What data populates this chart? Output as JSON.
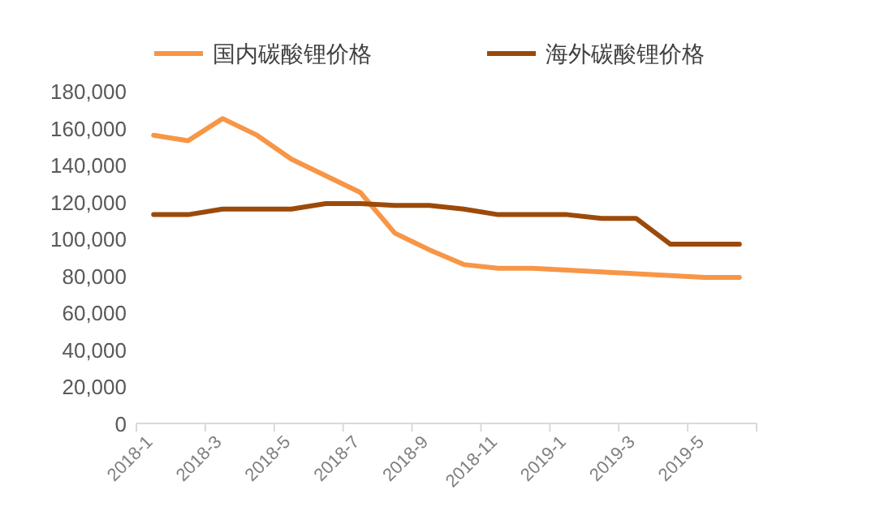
{
  "chart_data": {
    "type": "line",
    "categories": [
      "2018-1",
      null,
      "2018-3",
      null,
      "2018-5",
      null,
      "2018-7",
      null,
      "2018-9",
      null,
      "2018-11",
      null,
      "2019-1",
      null,
      "2019-3",
      null,
      "2019-5",
      null
    ],
    "series": [
      {
        "name": "国内碳酸锂价格",
        "color": "#f79646",
        "values": [
          156000,
          153000,
          165000,
          156000,
          143000,
          134000,
          125000,
          103000,
          94000,
          86000,
          84000,
          84000,
          83000,
          82000,
          81000,
          80000,
          79000,
          79000
        ]
      },
      {
        "name": "海外碳酸锂价格",
        "color": "#9c4a0a",
        "values": [
          113000,
          113000,
          116000,
          116000,
          116000,
          119000,
          119000,
          118000,
          118000,
          116000,
          113000,
          113000,
          113000,
          111000,
          111000,
          97000,
          97000,
          97000
        ]
      }
    ],
    "ylim": [
      0,
      180000
    ],
    "yticks": [
      {
        "value": 0,
        "label": "0"
      },
      {
        "value": 20000,
        "label": "20,000"
      },
      {
        "value": 40000,
        "label": "40,000"
      },
      {
        "value": 60000,
        "label": "60,000"
      },
      {
        "value": 80000,
        "label": "80,000"
      },
      {
        "value": 100000,
        "label": "100,000"
      },
      {
        "value": 120000,
        "label": "120,000"
      },
      {
        "value": 140000,
        "label": "140,000"
      },
      {
        "value": 160000,
        "label": "160,000"
      },
      {
        "value": 180000,
        "label": "180,000"
      }
    ],
    "legend": "top",
    "grid": false,
    "marker": "none",
    "line_style": "solid"
  }
}
